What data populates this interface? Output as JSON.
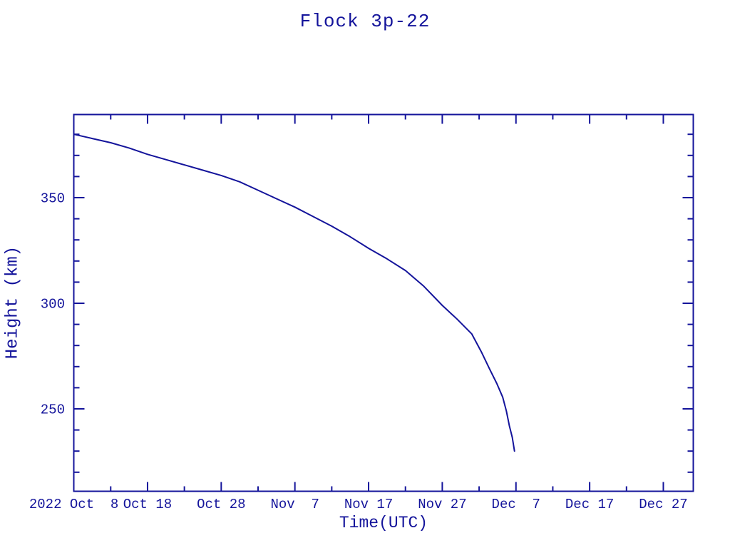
{
  "figure": {
    "background": "#ffffff",
    "ink_color": "#14149b"
  },
  "chart_data": {
    "type": "line",
    "title": "Flock 3p-22",
    "xlabel": "Time(UTC)",
    "ylabel": "Height (km)",
    "grid": false,
    "legend": null,
    "x_unit": "days since 2022 Oct 8 (UTC)",
    "x_range_days": [
      0,
      84.1
    ],
    "ylim": [
      210,
      390
    ],
    "x_major_ticks": [
      {
        "day": 0,
        "label": "2022 Oct  8"
      },
      {
        "day": 10,
        "label": "Oct 18"
      },
      {
        "day": 20,
        "label": "Oct 28"
      },
      {
        "day": 30,
        "label": "Nov  7"
      },
      {
        "day": 40,
        "label": "Nov 17"
      },
      {
        "day": 50,
        "label": "Nov 27"
      },
      {
        "day": 60,
        "label": "Dec  7"
      },
      {
        "day": 70,
        "label": "Dec 17"
      },
      {
        "day": 80,
        "label": "Dec 27"
      }
    ],
    "x_minor_tick_days": [
      5,
      15,
      25,
      35,
      45,
      55,
      65,
      75
    ],
    "y_major_ticks": [
      {
        "km": 250,
        "label": "250"
      },
      {
        "km": 300,
        "label": "300"
      },
      {
        "km": 350,
        "label": "350"
      }
    ],
    "y_minor_tick_kms": [
      220,
      230,
      240,
      260,
      270,
      280,
      290,
      310,
      320,
      330,
      340,
      360,
      370,
      380
    ],
    "series": [
      {
        "name": "Flock 3p-22 height",
        "color": "#14149b",
        "points_day_km": [
          [
            0,
            380.0
          ],
          [
            2.5,
            378.0
          ],
          [
            5,
            376.0
          ],
          [
            7.5,
            373.5
          ],
          [
            10,
            370.5
          ],
          [
            12.5,
            368.0
          ],
          [
            15,
            365.5
          ],
          [
            17.5,
            363.0
          ],
          [
            20,
            360.5
          ],
          [
            22.5,
            357.5
          ],
          [
            25,
            353.5
          ],
          [
            27.5,
            349.5
          ],
          [
            30,
            345.5
          ],
          [
            32.5,
            341.0
          ],
          [
            35,
            336.5
          ],
          [
            37.5,
            331.5
          ],
          [
            40,
            326.0
          ],
          [
            42.5,
            321.0
          ],
          [
            45,
            315.5
          ],
          [
            47.5,
            308.0
          ],
          [
            50,
            299.0
          ],
          [
            52,
            292.5
          ],
          [
            54,
            285.5
          ],
          [
            55.3,
            277.0
          ],
          [
            56.4,
            269.0
          ],
          [
            57.4,
            262.0
          ],
          [
            58.2,
            255.5
          ],
          [
            58.7,
            249.0
          ],
          [
            59.1,
            242.0
          ],
          [
            59.5,
            236.5
          ],
          [
            59.8,
            230.0
          ]
        ]
      }
    ]
  }
}
